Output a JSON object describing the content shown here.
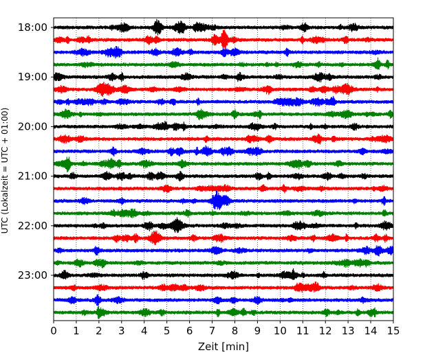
{
  "chart_data": {
    "type": "line",
    "title": "",
    "xlabel": "Zeit  [min]",
    "ylabel": "UTC (Lokalzeit = UTC + 01:00)",
    "xlim": [
      0,
      15
    ],
    "x_ticks": [
      "0",
      "1",
      "2",
      "3",
      "4",
      "5",
      "6",
      "7",
      "8",
      "9",
      "10",
      "11",
      "12",
      "13",
      "14",
      "15"
    ],
    "y_tick_labels": [
      "18:00",
      "19:00",
      "20:00",
      "21:00",
      "22:00",
      "23:00"
    ],
    "grid": "vertical dotted lines at each minute",
    "trace_interval_minutes": 15,
    "start_time": "18:00",
    "end_time": "23:45",
    "color_cycle": [
      "#000000",
      "#ff0000",
      "#0000ff",
      "#008000"
    ],
    "traces": [
      {
        "start": "18:00",
        "color": "#000000"
      },
      {
        "start": "18:15",
        "color": "#ff0000"
      },
      {
        "start": "18:30",
        "color": "#0000ff"
      },
      {
        "start": "18:45",
        "color": "#008000"
      },
      {
        "start": "19:00",
        "color": "#000000"
      },
      {
        "start": "19:15",
        "color": "#ff0000"
      },
      {
        "start": "19:30",
        "color": "#0000ff"
      },
      {
        "start": "19:45",
        "color": "#008000"
      },
      {
        "start": "20:00",
        "color": "#000000"
      },
      {
        "start": "20:15",
        "color": "#ff0000"
      },
      {
        "start": "20:30",
        "color": "#0000ff"
      },
      {
        "start": "20:45",
        "color": "#008000"
      },
      {
        "start": "21:00",
        "color": "#000000"
      },
      {
        "start": "21:15",
        "color": "#ff0000"
      },
      {
        "start": "21:30",
        "color": "#0000ff"
      },
      {
        "start": "21:45",
        "color": "#008000"
      },
      {
        "start": "22:00",
        "color": "#000000"
      },
      {
        "start": "22:15",
        "color": "#ff0000"
      },
      {
        "start": "22:30",
        "color": "#0000ff"
      },
      {
        "start": "22:45",
        "color": "#008000"
      },
      {
        "start": "23:00",
        "color": "#000000"
      },
      {
        "start": "23:15",
        "color": "#ff0000"
      },
      {
        "start": "23:30",
        "color": "#0000ff"
      },
      {
        "start": "23:45",
        "color": "#008000"
      }
    ]
  }
}
